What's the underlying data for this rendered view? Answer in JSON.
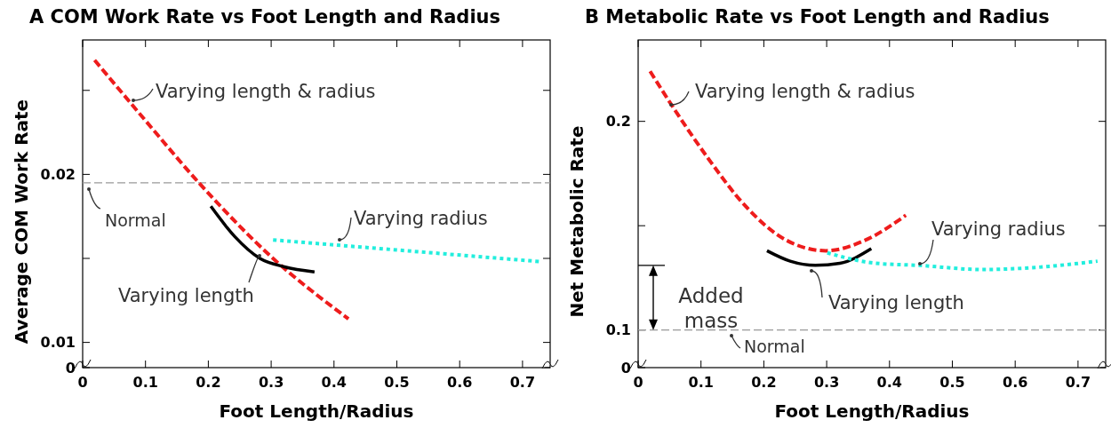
{
  "chart_data": [
    {
      "type": "line",
      "title": "A  COM Work Rate vs Foot Length and Radius",
      "xlabel": "Foot Length/Radius",
      "ylabel": "Average COM Work Rate",
      "xlim": [
        0,
        0.744
      ],
      "xticks": [
        0,
        0.1,
        0.2,
        0.3,
        0.4,
        0.5,
        0.6,
        0.7
      ],
      "ylim": [
        0.0085,
        0.028
      ],
      "yticks": [
        {
          "value": 0.0085,
          "label": "0"
        },
        0.01,
        {
          "value": 0.015,
          "label": null
        },
        0.02,
        {
          "value": 0.025,
          "label": null
        }
      ],
      "grid": false,
      "legend": false,
      "series": [
        {
          "name": "Varying length & radius",
          "color": "#ee1c1c",
          "line_style": "dashed",
          "x": [
            0.019,
            0.1,
            0.185,
            0.3,
            0.423
          ],
          "values": [
            0.0268,
            0.0232,
            0.0195,
            0.0151,
            0.0114
          ]
        },
        {
          "name": "Varying length",
          "color": "#000000",
          "line_style": "solid",
          "x": [
            0.204,
            0.242,
            0.282,
            0.321,
            0.369
          ],
          "values": [
            0.0181,
            0.0163,
            0.015,
            0.0145,
            0.0142
          ]
        },
        {
          "name": "Varying radius",
          "color": "#22eedd",
          "line_style": "dotted",
          "x": [
            0.303,
            0.731
          ],
          "values": [
            0.0161,
            0.0148
          ]
        }
      ],
      "ref_lines": [
        {
          "axis": "y",
          "value": 0.0195,
          "label": "Normal",
          "color": "#999999",
          "line_style": "dashed"
        }
      ]
    },
    {
      "type": "line",
      "title": "B  Metabolic Rate vs Foot Length and Radius",
      "xlabel": "Foot Length/Radius",
      "ylabel": "Net Metabolic Rate",
      "xlim": [
        0,
        0.744
      ],
      "xticks": [
        0,
        0.1,
        0.2,
        0.3,
        0.4,
        0.5,
        0.6,
        0.7
      ],
      "ylim": [
        0.082,
        0.239
      ],
      "yticks": [
        {
          "value": 0.082,
          "label": "0"
        },
        0.1,
        {
          "value": 0.15,
          "label": null
        },
        0.2
      ],
      "grid": false,
      "legend": false,
      "series": [
        {
          "name": "Varying length & radius",
          "color": "#ee1c1c",
          "line_style": "dashed",
          "x": [
            0.019,
            0.055,
            0.112,
            0.169,
            0.236,
            0.299,
            0.361,
            0.426
          ],
          "values": [
            0.224,
            0.207,
            0.182,
            0.16,
            0.143,
            0.138,
            0.143,
            0.155
          ]
        },
        {
          "name": "Varying length",
          "color": "#000000",
          "line_style": "solid",
          "x": [
            0.205,
            0.242,
            0.282,
            0.321,
            0.371
          ],
          "values": [
            0.138,
            0.133,
            0.131,
            0.132,
            0.139
          ]
        },
        {
          "name": "Varying radius",
          "color": "#22eedd",
          "line_style": "dotted",
          "x": [
            0.301,
            0.378,
            0.446,
            0.547,
            0.632,
            0.731
          ],
          "values": [
            0.137,
            0.132,
            0.131,
            0.129,
            0.13,
            0.133
          ]
        }
      ],
      "ref_lines": [
        {
          "axis": "y",
          "value": 0.1,
          "label": "Normal",
          "color": "#999999",
          "line_style": "dashed"
        }
      ],
      "annotations": [
        "Added mass"
      ]
    }
  ]
}
